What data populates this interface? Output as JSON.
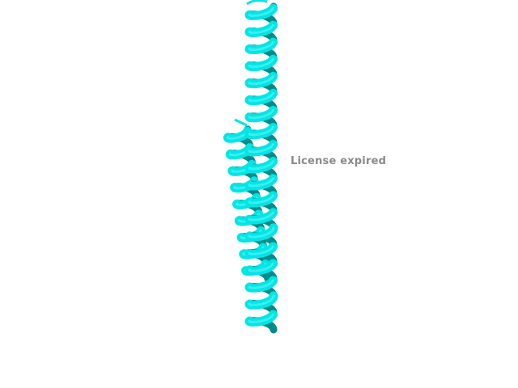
{
  "viewer": {
    "overlay_text": "License expired",
    "ribbon_color": "#00e5e5",
    "ribbon_shadow_color": "#008b8b",
    "background_color": "#ffffff"
  }
}
